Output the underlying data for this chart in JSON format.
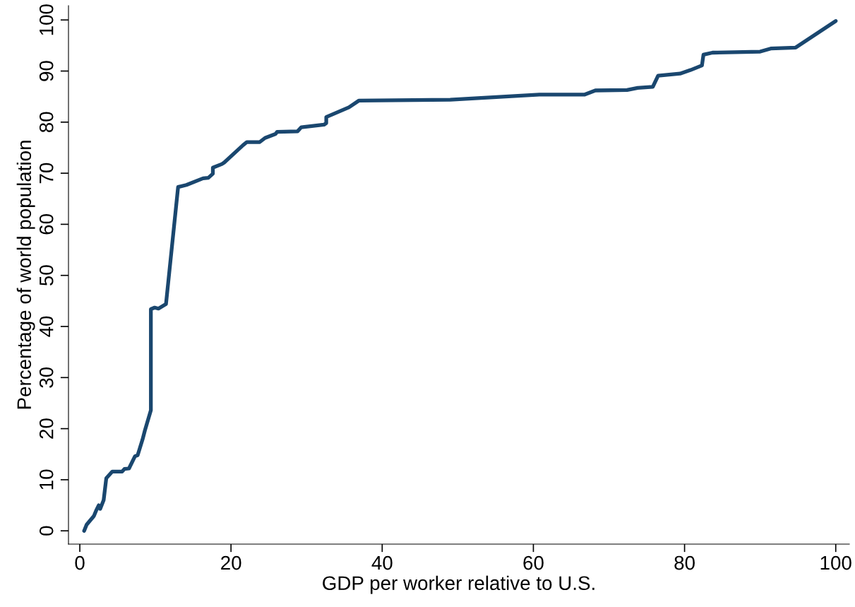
{
  "chart_data": {
    "type": "line",
    "xlabel": "GDP per worker relative to U.S.",
    "ylabel": "Percentage of world population",
    "series": [
      {
        "color": "#1a476f",
        "x": [
          0.57,
          0.9,
          1.86,
          2.2,
          2.5,
          2.7,
          3.15,
          3.5,
          4.3,
          5.6,
          5.9,
          6.5,
          7.3,
          7.65,
          8.3,
          8.6,
          9.4,
          9.4,
          9.9,
          10.4,
          11.4,
          13.0,
          14.1,
          16.3,
          17.0,
          17.6,
          17.6,
          18.8,
          19.1,
          21.6,
          22.1,
          23.8,
          24.5,
          25.9,
          26.1,
          28.8,
          29.3,
          32.3,
          32.6,
          32.6,
          35.6,
          36.9,
          49.0,
          60.8,
          66.8,
          68.2,
          72.4,
          73.8,
          75.8,
          76.5,
          79.4,
          80.8,
          82.3,
          82.5,
          83.7,
          90.0,
          91.4,
          94.7,
          100.0
        ],
        "values": [
          0.0,
          1.2,
          2.9,
          4.1,
          5.0,
          4.3,
          6.0,
          10.3,
          11.6,
          11.6,
          12.1,
          12.2,
          14.6,
          14.8,
          17.9,
          19.6,
          23.6,
          43.4,
          43.7,
          43.5,
          44.4,
          67.3,
          67.7,
          69.0,
          69.1,
          69.9,
          71.1,
          71.8,
          72.1,
          75.5,
          76.1,
          76.1,
          76.9,
          77.7,
          78.1,
          78.2,
          79.0,
          79.5,
          79.8,
          81.0,
          82.9,
          84.2,
          84.4,
          85.4,
          85.4,
          86.2,
          86.3,
          86.7,
          86.9,
          89.1,
          89.5,
          90.2,
          91.1,
          93.2,
          93.6,
          93.8,
          94.4,
          94.6,
          99.8
        ]
      }
    ],
    "xlim": [
      -1.5,
      101.8
    ],
    "ylim": [
      -2.6,
      102.8
    ],
    "xticks": [
      0,
      20,
      40,
      60,
      80,
      100
    ],
    "yticks": [
      0,
      10,
      20,
      30,
      40,
      50,
      60,
      70,
      80,
      90,
      100
    ],
    "grid": false,
    "marker": "none",
    "line_style": "solid"
  }
}
